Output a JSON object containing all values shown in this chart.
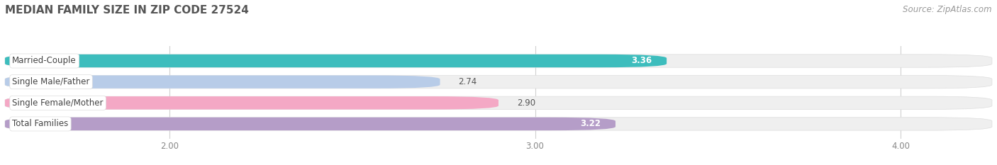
{
  "title": "MEDIAN FAMILY SIZE IN ZIP CODE 27524",
  "source": "Source: ZipAtlas.com",
  "categories": [
    "Married-Couple",
    "Single Male/Father",
    "Single Female/Mother",
    "Total Families"
  ],
  "values": [
    3.36,
    2.74,
    2.9,
    3.22
  ],
  "bar_colors": [
    "#3dbdbd",
    "#b8cce8",
    "#f4a8c5",
    "#b59dc8"
  ],
  "bar_bg_color": "#efefef",
  "xlim_left": 1.55,
  "xlim_right": 4.25,
  "xticks": [
    2.0,
    3.0,
    4.0
  ],
  "xtick_labels": [
    "2.00",
    "3.00",
    "4.00"
  ],
  "bar_height": 0.62,
  "bar_gap": 0.38,
  "title_fontsize": 11,
  "label_fontsize": 8.5,
  "value_fontsize": 8.5,
  "source_fontsize": 8.5,
  "tick_fontsize": 8.5,
  "bg_color": "#ffffff",
  "plot_bg_color": "#ffffff",
  "grid_color": "#d0d0d0",
  "value_inside_threshold": 2.95
}
